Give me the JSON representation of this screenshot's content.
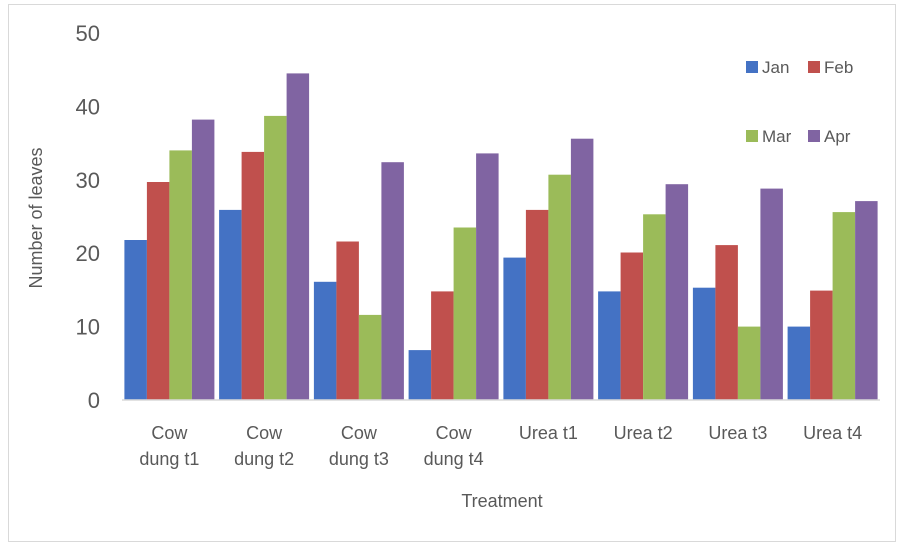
{
  "chart_data": {
    "type": "bar",
    "title": "",
    "xlabel": "Treatment",
    "ylabel": "Number of leaves",
    "ylim": [
      0,
      50
    ],
    "yticks": [
      0,
      10,
      20,
      30,
      40,
      50
    ],
    "grid": false,
    "legend_position": "top-right",
    "categories": [
      [
        "Cow",
        "dung t1"
      ],
      [
        "Cow",
        "dung t2"
      ],
      [
        "Cow",
        "dung t3"
      ],
      [
        "Cow",
        "dung t4"
      ],
      [
        "Urea t1"
      ],
      [
        "Urea t2"
      ],
      [
        "Urea t3"
      ],
      [
        "Urea t4"
      ]
    ],
    "series": [
      {
        "name": "Jan",
        "color": "#4472c4",
        "values": [
          21.8,
          25.9,
          16.1,
          6.8,
          19.4,
          14.8,
          15.3,
          10.0
        ]
      },
      {
        "name": "Feb",
        "color": "#c0504d",
        "values": [
          29.7,
          33.8,
          21.6,
          14.8,
          25.9,
          20.1,
          21.1,
          14.9
        ]
      },
      {
        "name": "Mar",
        "color": "#9bbb59",
        "values": [
          34.0,
          38.7,
          11.6,
          23.5,
          30.7,
          25.3,
          10.0,
          25.6
        ]
      },
      {
        "name": "Apr",
        "color": "#8064a2",
        "values": [
          38.2,
          44.5,
          32.4,
          33.6,
          35.6,
          29.4,
          28.8,
          27.1
        ]
      }
    ]
  }
}
